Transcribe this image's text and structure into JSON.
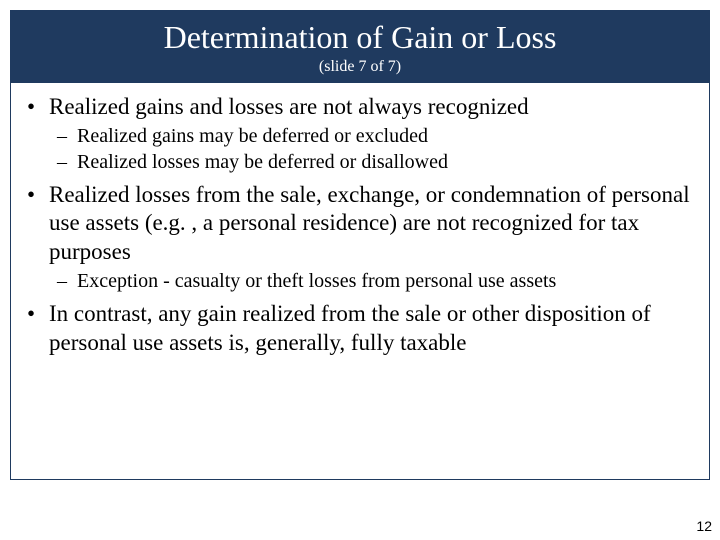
{
  "title": {
    "main": "Determination of Gain or Loss",
    "sub": "(slide 7 of 7)"
  },
  "bullets": [
    {
      "text": "Realized gains and losses are not always recognized",
      "children": [
        {
          "text": "Realized gains may be deferred or excluded"
        },
        {
          "text": "Realized losses may be deferred or disallowed"
        }
      ]
    },
    {
      "text": "Realized losses from the sale, exchange, or condemnation of personal use assets (e.g. , a personal residence) are not recognized for tax purposes",
      "children": [
        {
          "text": "Exception - casualty or theft losses from personal use assets"
        }
      ]
    },
    {
      "text": "In contrast, any gain realized from the sale or other disposition of personal use assets is, generally, fully taxable",
      "children": []
    }
  ],
  "page_number": "12",
  "colors": {
    "title_bg": "#1f3a5f",
    "title_text": "#ffffff",
    "body_text": "#000000",
    "frame_border": "#1f3a5f",
    "background": "#ffffff"
  }
}
